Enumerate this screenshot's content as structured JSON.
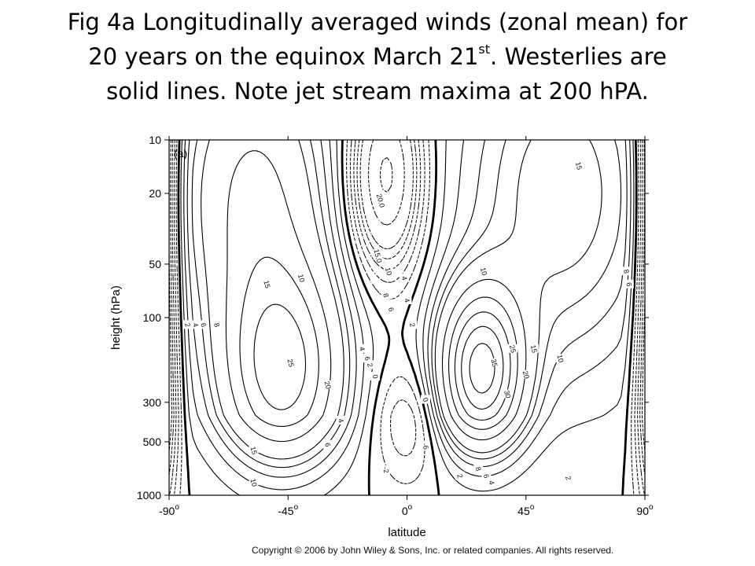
{
  "slide": {
    "title_line1": "Fig 4a Longitudinally averaged winds (zonal mean) for",
    "title_line2_pre": "20 years on the equinox March 21",
    "title_line2_sup": "st",
    "title_line2_post": ". Westerlies are",
    "title_line3": "solid lines. Note jet stream maxima at 200 hPA."
  },
  "copyright": "Copyright © 2006 by John Wiley & Sons, Inc. or related companies. All rights reserved.",
  "chart_data": {
    "type": "contour",
    "panel_label": "(a)",
    "xlabel": "latitude",
    "ylabel": "height (hPa)",
    "xlim": [
      -90,
      90
    ],
    "ylim": [
      1000,
      10
    ],
    "y_scale": "log",
    "x_ticks": [
      {
        "value": -90,
        "label": "-90",
        "degree": true
      },
      {
        "value": -45,
        "label": "-45",
        "degree": true
      },
      {
        "value": 0,
        "label": "0",
        "degree": true
      },
      {
        "value": 45,
        "label": "45",
        "degree": true
      },
      {
        "value": 90,
        "label": "90",
        "degree": true
      }
    ],
    "y_ticks": [
      {
        "value": 10,
        "label": "10"
      },
      {
        "value": 20,
        "label": "20"
      },
      {
        "value": 50,
        "label": "50"
      },
      {
        "value": 100,
        "label": "100"
      },
      {
        "value": 300,
        "label": "300"
      },
      {
        "value": 500,
        "label": "500"
      },
      {
        "value": 1000,
        "label": "1000"
      }
    ],
    "contour_levels_westerly": [
      2,
      4,
      6,
      8,
      10,
      15,
      20,
      25,
      30,
      35
    ],
    "contour_levels_easterly": [
      -2,
      -4,
      -6,
      -8,
      -10,
      -15,
      -20
    ],
    "annotations": [
      {
        "text": "2",
        "lat": -83,
        "p": 110
      },
      {
        "text": "4",
        "lat": -80,
        "p": 110
      },
      {
        "text": "6",
        "lat": -77,
        "p": 110
      },
      {
        "text": "8",
        "lat": -72,
        "p": 110
      },
      {
        "text": "15",
        "lat": -53,
        "p": 65
      },
      {
        "text": "10",
        "lat": -40,
        "p": 60
      },
      {
        "text": "25",
        "lat": -44,
        "p": 180
      },
      {
        "text": "20",
        "lat": -30,
        "p": 240
      },
      {
        "text": "6",
        "lat": -15,
        "p": 170
      },
      {
        "text": "4",
        "lat": -17,
        "p": 150
      },
      {
        "text": "2",
        "lat": -14,
        "p": 185
      },
      {
        "text": "0",
        "lat": -12,
        "p": 215
      },
      {
        "text": "4",
        "lat": -25,
        "p": 380
      },
      {
        "text": "6",
        "lat": -30,
        "p": 520
      },
      {
        "text": "15",
        "lat": -58,
        "p": 560
      },
      {
        "text": "10",
        "lat": -58,
        "p": 850
      },
      {
        "text": "20.0",
        "lat": -10,
        "p": 22
      },
      {
        "text": "15.0",
        "lat": -11,
        "p": 45
      },
      {
        "text": "10",
        "lat": -7,
        "p": 55
      },
      {
        "text": "8",
        "lat": -8,
        "p": 75
      },
      {
        "text": "6",
        "lat": -6,
        "p": 90
      },
      {
        "text": "4",
        "lat": -1,
        "p": 60
      },
      {
        "text": "4",
        "lat": 0,
        "p": 80
      },
      {
        "text": "2",
        "lat": 2,
        "p": 110
      },
      {
        "text": "-6",
        "lat": 7,
        "p": 530
      },
      {
        "text": "-2",
        "lat": -8,
        "p": 720
      },
      {
        "text": "0",
        "lat": 7,
        "p": 290
      },
      {
        "text": "2",
        "lat": 20,
        "p": 780
      },
      {
        "text": "8",
        "lat": 27,
        "p": 710
      },
      {
        "text": "6",
        "lat": 30,
        "p": 780
      },
      {
        "text": "4",
        "lat": 32,
        "p": 850
      },
      {
        "text": "2",
        "lat": 61,
        "p": 800
      },
      {
        "text": "35",
        "lat": 33,
        "p": 180
      },
      {
        "text": "30",
        "lat": 38,
        "p": 270
      },
      {
        "text": "25",
        "lat": 40,
        "p": 150
      },
      {
        "text": "20",
        "lat": 45,
        "p": 210
      },
      {
        "text": "15",
        "lat": 48,
        "p": 150
      },
      {
        "text": "10",
        "lat": 58,
        "p": 170
      },
      {
        "text": "10",
        "lat": 29,
        "p": 55
      },
      {
        "text": "15",
        "lat": 65,
        "p": 14
      },
      {
        "text": "8",
        "lat": 83,
        "p": 55
      },
      {
        "text": "6",
        "lat": 84,
        "p": 65
      }
    ]
  }
}
